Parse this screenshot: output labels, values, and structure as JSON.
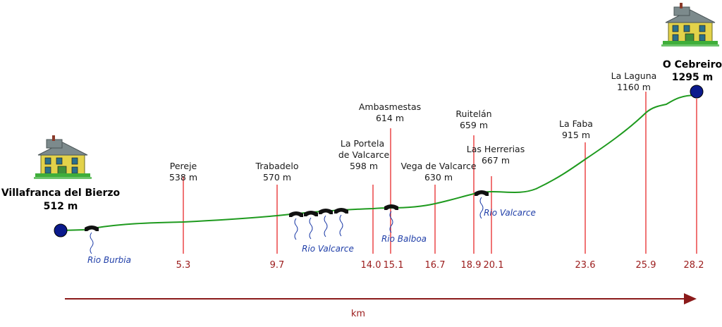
{
  "colors": {
    "profile": "#1e9a1e",
    "marker": "#e8292b",
    "km_text": "#9b1b1b",
    "river_text": "#1f3ea8",
    "endpoint_dot": "#0b1a8c",
    "axis": "#8b1a1a"
  },
  "start": {
    "name": "Villafranca del Bierzo",
    "elevation": "512 m",
    "icon": "house-icon"
  },
  "end": {
    "name": "O Cebreiro",
    "elevation": "1295 m",
    "icon": "house-icon"
  },
  "stops": [
    {
      "name": "Pereje",
      "elevation": "538 m",
      "km": "5.3"
    },
    {
      "name": "Trabadelo",
      "elevation": "570 m",
      "km": "9.7"
    },
    {
      "name": "La Portela\nde Valcarce",
      "elevation": "598 m",
      "km": "14.0"
    },
    {
      "name": "Ambasmestas",
      "elevation": "614 m",
      "km": "15.1"
    },
    {
      "name": "Vega de Valcarce",
      "elevation": "630 m",
      "km": "16.7"
    },
    {
      "name": "Ruitelán",
      "elevation": "659 m",
      "km": "18.9"
    },
    {
      "name": "Las Herrerias",
      "elevation": "667 m",
      "km": "20.1"
    },
    {
      "name": "La Faba",
      "elevation": "915 m",
      "km": "23.6"
    },
    {
      "name": "La Laguna",
      "elevation": "1160 m",
      "km": "25.9"
    }
  ],
  "end_km": "28.2",
  "rivers": [
    {
      "name": "Rio Burbia",
      "icon": "bridge-icon"
    },
    {
      "name": "Rio Valcarce",
      "icon": "bridge-icon"
    },
    {
      "name": "Rio Balboa",
      "icon": "bridge-icon"
    },
    {
      "name": "Rio Valcarce",
      "icon": "bridge-icon"
    }
  ],
  "axis": {
    "label": "km"
  }
}
